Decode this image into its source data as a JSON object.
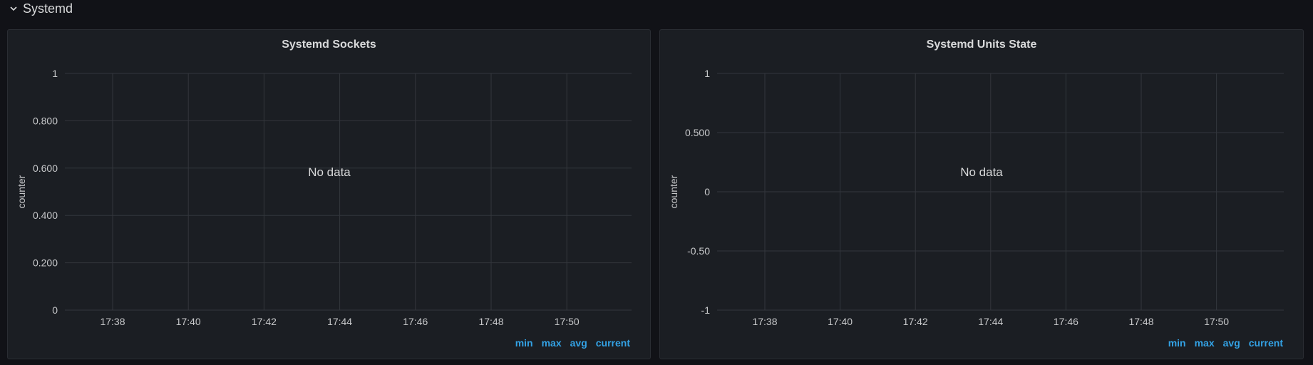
{
  "row": {
    "title": "Systemd",
    "chevron_icon": "chevron-down-icon"
  },
  "panels": [
    {
      "title": "Systemd Sockets",
      "no_data": "No data",
      "legend": [
        "min",
        "max",
        "avg",
        "current"
      ],
      "chart_data": {
        "type": "line",
        "title": "Systemd Sockets",
        "ylabel": "counter",
        "xlabel": "",
        "x_ticks": [
          "17:38",
          "17:40",
          "17:42",
          "17:44",
          "17:46",
          "17:48",
          "17:50"
        ],
        "y_ticks": [
          "0",
          "0.200",
          "0.400",
          "0.600",
          "0.800",
          "1"
        ],
        "ylim": [
          0,
          1
        ],
        "grid": true,
        "series": []
      }
    },
    {
      "title": "Systemd Units State",
      "no_data": "No data",
      "legend": [
        "min",
        "max",
        "avg",
        "current"
      ],
      "chart_data": {
        "type": "line",
        "title": "Systemd Units State",
        "ylabel": "counter",
        "xlabel": "",
        "x_ticks": [
          "17:38",
          "17:40",
          "17:42",
          "17:44",
          "17:46",
          "17:48",
          "17:50"
        ],
        "y_ticks": [
          "-1",
          "-0.50",
          "0",
          "0.500",
          "1"
        ],
        "ylim": [
          -1,
          1
        ],
        "grid": true,
        "series": []
      }
    }
  ],
  "colors": {
    "legend_link": "#33a2e5",
    "panel_bg": "#1b1e23",
    "page_bg": "#111217"
  }
}
